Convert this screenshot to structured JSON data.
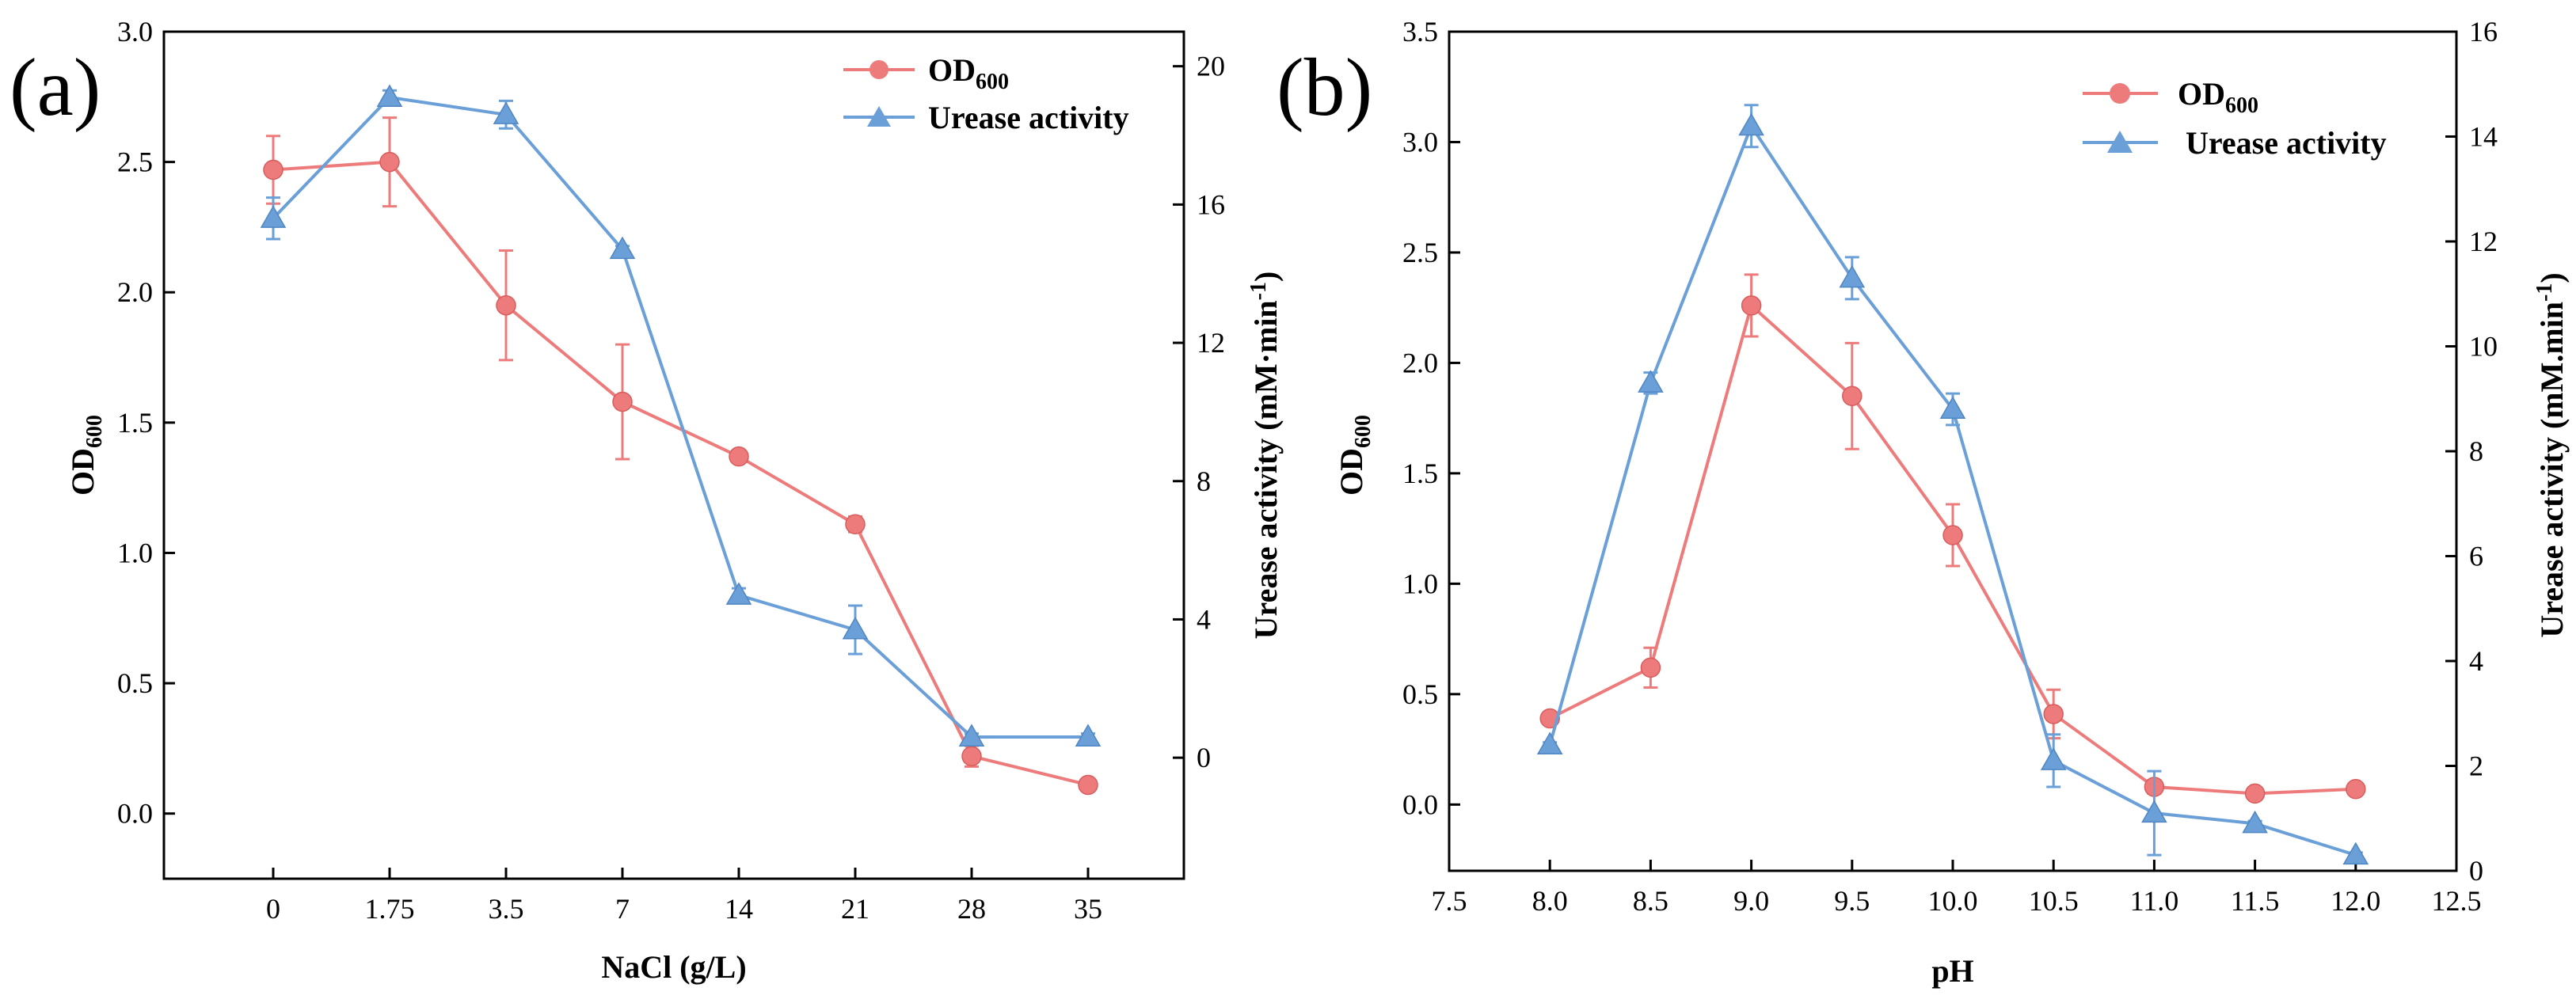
{
  "chart_data": [
    {
      "type": "line",
      "panel_label": "(a)",
      "xlabel": "NaCl (g/L)",
      "ylabel": "OD",
      "ylabel_sub": "600",
      "y2label": "Urease activity (mM·min",
      "y2label_sup": "-1",
      "y2label_end": ")",
      "categories": [
        "0",
        "1.75",
        "3.5",
        "7",
        "14",
        "21",
        "28",
        "35"
      ],
      "ylim": [
        -0.25,
        3.0
      ],
      "yticks": [
        "0.0",
        "0.5",
        "1.0",
        "1.5",
        "2.0",
        "2.5",
        "3.0"
      ],
      "y2lim": [
        -3.5,
        21
      ],
      "y2ticks": [
        "0",
        "4",
        "8",
        "12",
        "16",
        "20"
      ],
      "series": [
        {
          "name": "OD",
          "name_sub": "600",
          "axis": "left",
          "color": "#EE7B7B",
          "marker": "circle",
          "values": [
            2.47,
            2.5,
            1.95,
            1.58,
            1.37,
            1.11,
            0.22,
            0.11
          ],
          "errors": [
            0.13,
            0.17,
            0.21,
            0.22,
            0.02,
            0.03,
            0.04,
            0.02
          ]
        },
        {
          "name": "Urease activity",
          "axis": "right",
          "color": "#6A9FD8",
          "marker": "triangle",
          "values": [
            15.6,
            19.1,
            18.6,
            14.7,
            4.7,
            3.7,
            0.6,
            0.6
          ],
          "errors": [
            0.6,
            0.2,
            0.4,
            0.1,
            0.2,
            0.7,
            0.1,
            0.1
          ]
        }
      ]
    },
    {
      "type": "line",
      "panel_label": "(b)",
      "xlabel": "pH",
      "ylabel": "OD",
      "ylabel_sub": "600",
      "y2label": "Urease activity (mM.min",
      "y2label_sup": "-1",
      "y2label_end": ")",
      "xlim": [
        7.5,
        12.5
      ],
      "xticks": [
        "7.5",
        "8.0",
        "8.5",
        "9.0",
        "9.5",
        "10.0",
        "10.5",
        "11.0",
        "11.5",
        "12.0",
        "12.5"
      ],
      "ylim": [
        -0.3,
        3.5
      ],
      "yticks": [
        "0.0",
        "0.5",
        "1.0",
        "1.5",
        "2.0",
        "2.5",
        "3.0",
        "3.5"
      ],
      "y2lim": [
        0,
        16
      ],
      "y2ticks": [
        "0",
        "2",
        "4",
        "6",
        "8",
        "10",
        "12",
        "14",
        "16"
      ],
      "series": [
        {
          "name": "OD",
          "name_sub": "600",
          "axis": "left",
          "color": "#EE7B7B",
          "marker": "circle",
          "x": [
            8.0,
            8.5,
            9.0,
            9.5,
            10.0,
            10.5,
            11.0,
            11.5,
            12.0
          ],
          "values": [
            0.39,
            0.62,
            2.26,
            1.85,
            1.22,
            0.41,
            0.08,
            0.05,
            0.07
          ],
          "errors": [
            0.02,
            0.09,
            0.14,
            0.24,
            0.14,
            0.11,
            0.03,
            0.02,
            0.02
          ]
        },
        {
          "name": "Urease activity",
          "axis": "right",
          "color": "#6A9FD8",
          "marker": "triangle",
          "x": [
            8.0,
            8.5,
            9.0,
            9.5,
            10.0,
            10.5,
            11.0,
            11.5,
            12.0
          ],
          "values": [
            2.4,
            9.3,
            14.2,
            11.3,
            8.8,
            2.1,
            1.1,
            0.9,
            0.3
          ],
          "errors": [
            0.05,
            0.2,
            0.4,
            0.4,
            0.3,
            0.5,
            0.8,
            0.05,
            0.05
          ]
        }
      ]
    }
  ]
}
